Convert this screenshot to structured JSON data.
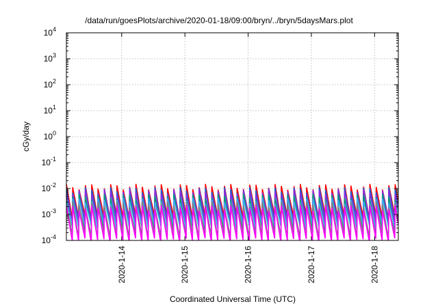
{
  "chart_data": {
    "type": "line",
    "title": "/data/run/goesPlots/archive/2020-01-18/09:00/bryn/../bryn/5daysMars.plot",
    "xlabel": "Coordinated Universal Time (UTC)",
    "ylabel": "cGy/day",
    "yscale": "log",
    "ylim": [
      0.0001,
      10000
    ],
    "xlim": [
      "2020-01-13 03:00",
      "2020-01-18 09:00"
    ],
    "x_ticks": [
      "2020-1-14",
      "2020-1-15",
      "2020-1-16",
      "2020-1-17",
      "2020-1-18"
    ],
    "y_ticks": [
      {
        "value": 0.0001,
        "base": "10",
        "exp": "-4"
      },
      {
        "value": 0.001,
        "base": "10",
        "exp": "-3"
      },
      {
        "value": 0.01,
        "base": "10",
        "exp": "-2"
      },
      {
        "value": 0.1,
        "base": "10",
        "exp": "-1"
      },
      {
        "value": 1,
        "base": "10",
        "exp": "0"
      },
      {
        "value": 10,
        "base": "10",
        "exp": "1"
      },
      {
        "value": 100,
        "base": "10",
        "exp": "2"
      },
      {
        "value": 1000,
        "base": "10",
        "exp": "3"
      },
      {
        "value": 10000,
        "base": "10",
        "exp": "4"
      }
    ],
    "grid": true,
    "pattern": "sawtooth",
    "cycles_per_day": 10,
    "series": [
      {
        "color": "#ff0000",
        "peak": 0.012,
        "trough": 0.0008
      },
      {
        "color": "#1b5fd6",
        "peak": 0.009,
        "trough": 0.0006
      },
      {
        "color": "#8b2be2",
        "peak": 0.0075,
        "trough": 0.00045
      },
      {
        "color": "#009a7a",
        "peak": 0.005,
        "trough": 0.0003
      },
      {
        "color": "#3fa9f5",
        "peak": 0.0035,
        "trough": 0.00035
      },
      {
        "color": "#7f7f7f",
        "peak": 0.0025,
        "trough": 0.00015
      },
      {
        "color": "#ff00ff",
        "peak": 0.0018,
        "trough": 0.0001
      }
    ]
  }
}
